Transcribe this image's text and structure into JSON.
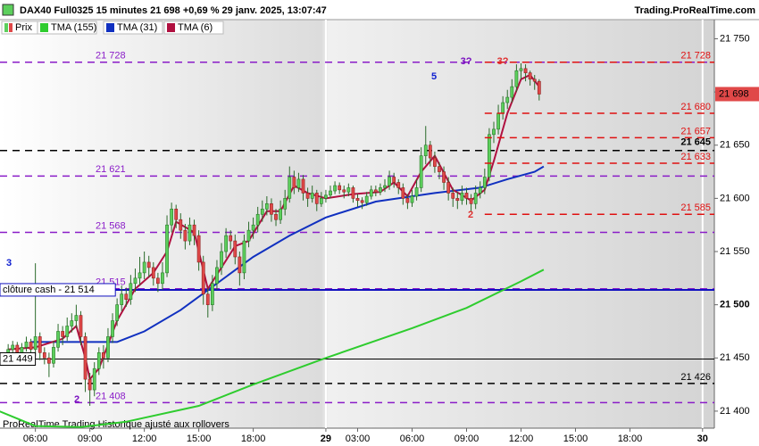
{
  "header": {
    "title": "DAX40 Full0325 15 minutes 21 698 +0,69 % 29 janv. 2025, 13:07:47",
    "site": "Trading.ProRealTime.com",
    "footer": "ProRealTime Trading  Historique ajusté aux rollovers"
  },
  "chart_data": {
    "type": "candlestick",
    "price_series": {
      "name": "Prix",
      "up_color": "#5ccf5c",
      "down_color": "#e04848"
    },
    "last_price": {
      "value": 21698,
      "label": "21 698",
      "color": "#e04848"
    },
    "xlim": [
      -7.8,
      149.6
    ],
    "ylim": [
      21384,
      21768
    ],
    "xticks": [
      {
        "value": 0,
        "label": "06:00"
      },
      {
        "value": 12,
        "label": "09:00"
      },
      {
        "value": 24,
        "label": "12:00"
      },
      {
        "value": 36,
        "label": "15:00"
      },
      {
        "value": 48,
        "label": "18:00"
      },
      {
        "value": 64,
        "label": "29"
      },
      {
        "value": 71,
        "label": "03:00"
      },
      {
        "value": 83,
        "label": "06:00"
      },
      {
        "value": 95,
        "label": "09:00"
      },
      {
        "value": 107,
        "label": "12:00"
      },
      {
        "value": 119,
        "label": "15:00"
      },
      {
        "value": 131,
        "label": "18:00"
      },
      {
        "value": 147,
        "label": "30"
      }
    ],
    "yticks": [
      {
        "value": 21400,
        "label": "21 400"
      },
      {
        "value": 21450,
        "label": "21 450"
      },
      {
        "value": 21500,
        "label": "21 500"
      },
      {
        "value": 21550,
        "label": "21 550"
      },
      {
        "value": 21600,
        "label": "21 600"
      },
      {
        "value": 21650,
        "label": "21 650"
      },
      {
        "value": 21700,
        "label": "21 700"
      },
      {
        "value": 21750,
        "label": "21 750"
      }
    ],
    "x": [
      -6,
      -5,
      -4,
      -3,
      -2,
      -1,
      0,
      1,
      2,
      3,
      4,
      5,
      6,
      7,
      8,
      9,
      10,
      11,
      12,
      13,
      14,
      15,
      16,
      17,
      18,
      19,
      20,
      21,
      22,
      23,
      24,
      25,
      26,
      27,
      28,
      29,
      30,
      31,
      32,
      33,
      34,
      35,
      36,
      37,
      38,
      39,
      40,
      41,
      42,
      43,
      44,
      45,
      46,
      47,
      48,
      49,
      50,
      51,
      52,
      53,
      54,
      55,
      56,
      57,
      58,
      59,
      60,
      61,
      62,
      63,
      64,
      65,
      66,
      67,
      68,
      69,
      70,
      71,
      72,
      73,
      74,
      75,
      76,
      77,
      78,
      79,
      80,
      81,
      82,
      83,
      84,
      85,
      86,
      87,
      88,
      89,
      90,
      91,
      92,
      93,
      94,
      95,
      96,
      97,
      98,
      99,
      100,
      101,
      102,
      103,
      104,
      105,
      106,
      107,
      108,
      109,
      110,
      111
    ],
    "candles": [
      [
        21455,
        21463,
        21450,
        21458
      ],
      [
        21458,
        21466,
        21453,
        21462
      ],
      [
        21462,
        21465,
        21450,
        21455
      ],
      [
        21455,
        21464,
        21452,
        21460
      ],
      [
        21460,
        21470,
        21456,
        21465
      ],
      [
        21465,
        21468,
        21452,
        21458
      ],
      [
        21458,
        21539,
        21452,
        21470
      ],
      [
        21470,
        21474,
        21448,
        21455
      ],
      [
        21455,
        21460,
        21444,
        21450
      ],
      [
        21450,
        21455,
        21432,
        21445
      ],
      [
        21445,
        21466,
        21441,
        21460
      ],
      [
        21460,
        21482,
        21456,
        21475
      ],
      [
        21475,
        21480,
        21462,
        21470
      ],
      [
        21470,
        21488,
        21466,
        21480
      ],
      [
        21480,
        21492,
        21474,
        21485
      ],
      [
        21485,
        21500,
        21478,
        21490
      ],
      [
        21490,
        21494,
        21462,
        21470
      ],
      [
        21470,
        21474,
        21418,
        21430
      ],
      [
        21430,
        21436,
        21405,
        21420
      ],
      [
        21420,
        21446,
        21414,
        21440
      ],
      [
        21440,
        21460,
        21434,
        21455
      ],
      [
        21455,
        21462,
        21440,
        21450
      ],
      [
        21450,
        21478,
        21446,
        21470
      ],
      [
        21470,
        21492,
        21464,
        21485
      ],
      [
        21485,
        21506,
        21480,
        21500
      ],
      [
        21500,
        21518,
        21494,
        21510
      ],
      [
        21510,
        21516,
        21498,
        21505
      ],
      [
        21505,
        21528,
        21500,
        21520
      ],
      [
        21520,
        21534,
        21512,
        21525
      ],
      [
        21525,
        21545,
        21518,
        21530
      ],
      [
        21530,
        21550,
        21524,
        21540
      ],
      [
        21540,
        21546,
        21526,
        21535
      ],
      [
        21535,
        21540,
        21518,
        21525
      ],
      [
        21525,
        21530,
        21512,
        21520
      ],
      [
        21520,
        21540,
        21514,
        21530
      ],
      [
        21530,
        21584,
        21526,
        21575
      ],
      [
        21575,
        21596,
        21568,
        21590
      ],
      [
        21590,
        21594,
        21572,
        21580
      ],
      [
        21580,
        21586,
        21562,
        21570
      ],
      [
        21570,
        21576,
        21552,
        21560
      ],
      [
        21560,
        21582,
        21556,
        21575
      ],
      [
        21575,
        21580,
        21556,
        21565
      ],
      [
        21565,
        21570,
        21532,
        21540
      ],
      [
        21540,
        21546,
        21500,
        21510
      ],
      [
        21510,
        21516,
        21488,
        21500
      ],
      [
        21500,
        21528,
        21494,
        21520
      ],
      [
        21520,
        21542,
        21514,
        21535
      ],
      [
        21535,
        21558,
        21528,
        21550
      ],
      [
        21550,
        21572,
        21544,
        21565
      ],
      [
        21565,
        21570,
        21552,
        21560
      ],
      [
        21560,
        21566,
        21538,
        21545
      ],
      [
        21545,
        21550,
        21518,
        21530
      ],
      [
        21530,
        21566,
        21524,
        21560
      ],
      [
        21560,
        21578,
        21554,
        21570
      ],
      [
        21570,
        21582,
        21562,
        21575
      ],
      [
        21575,
        21592,
        21568,
        21585
      ],
      [
        21585,
        21598,
        21578,
        21590
      ],
      [
        21590,
        21602,
        21584,
        21595
      ],
      [
        21595,
        21600,
        21578,
        21585
      ],
      [
        21585,
        21590,
        21574,
        21580
      ],
      [
        21580,
        21598,
        21576,
        21590
      ],
      [
        21590,
        21608,
        21584,
        21600
      ],
      [
        21600,
        21630,
        21596,
        21620
      ],
      [
        21620,
        21626,
        21604,
        21610
      ],
      [
        21610,
        21624,
        21606,
        21618
      ],
      [
        21618,
        21622,
        21598,
        21605
      ],
      [
        21605,
        21610,
        21592,
        21600
      ],
      [
        21600,
        21612,
        21596,
        21605
      ],
      [
        21605,
        21608,
        21588,
        21595
      ],
      [
        21595,
        21606,
        21592,
        21600
      ],
      [
        21600,
        21608,
        21596,
        21603
      ],
      [
        21603,
        21612,
        21600,
        21607
      ],
      [
        21607,
        21616,
        21604,
        21612
      ],
      [
        21612,
        21615,
        21604,
        21608
      ],
      [
        21608,
        21612,
        21600,
        21606
      ],
      [
        21606,
        21614,
        21602,
        21610
      ],
      [
        21610,
        21612,
        21596,
        21600
      ],
      [
        21600,
        21604,
        21592,
        21598
      ],
      [
        21598,
        21601,
        21590,
        21596
      ],
      [
        21596,
        21606,
        21593,
        21602
      ],
      [
        21602,
        21612,
        21599,
        21608
      ],
      [
        21608,
        21612,
        21602,
        21606
      ],
      [
        21606,
        21614,
        21603,
        21610
      ],
      [
        21610,
        21618,
        21606,
        21612
      ],
      [
        21612,
        21626,
        21608,
        21620
      ],
      [
        21620,
        21624,
        21610,
        21615
      ],
      [
        21615,
        21618,
        21604,
        21610
      ],
      [
        21610,
        21614,
        21594,
        21600
      ],
      [
        21600,
        21604,
        21590,
        21596
      ],
      [
        21596,
        21608,
        21592,
        21602
      ],
      [
        21602,
        21618,
        21598,
        21610
      ],
      [
        21610,
        21648,
        21606,
        21640
      ],
      [
        21640,
        21668,
        21632,
        21650
      ],
      [
        21650,
        21654,
        21630,
        21638
      ],
      [
        21638,
        21644,
        21624,
        21630
      ],
      [
        21630,
        21634,
        21618,
        21625
      ],
      [
        21625,
        21630,
        21608,
        21615
      ],
      [
        21615,
        21620,
        21598,
        21605
      ],
      [
        21605,
        21610,
        21592,
        21600
      ],
      [
        21600,
        21606,
        21590,
        21598
      ],
      [
        21598,
        21612,
        21594,
        21605
      ],
      [
        21605,
        21610,
        21594,
        21600
      ],
      [
        21600,
        21604,
        21588,
        21595
      ],
      [
        21595,
        21612,
        21590,
        21605
      ],
      [
        21605,
        21616,
        21600,
        21610
      ],
      [
        21610,
        21628,
        21604,
        21620
      ],
      [
        21620,
        21666,
        21616,
        21660
      ],
      [
        21660,
        21672,
        21652,
        21665
      ],
      [
        21665,
        21688,
        21660,
        21680
      ],
      [
        21680,
        21696,
        21674,
        21690
      ],
      [
        21690,
        21702,
        21684,
        21695
      ],
      [
        21695,
        21712,
        21690,
        21705
      ],
      [
        21705,
        21726,
        21700,
        21720
      ],
      [
        21720,
        21727,
        21712,
        21722
      ],
      [
        21722,
        21726,
        21710,
        21718
      ],
      [
        21718,
        21720,
        21706,
        21712
      ],
      [
        21712,
        21716,
        21702,
        21710
      ],
      [
        21710,
        21712,
        21692,
        21698
      ]
    ],
    "series": [
      {
        "name": "TMA (155)",
        "color": "#2ecc2e",
        "x": [
          -8,
          0,
          10,
          20,
          36,
          48,
          64,
          83,
          95,
          107,
          112
        ],
        "values": [
          21400,
          21386,
          21385,
          21390,
          21405,
          21425,
          21450,
          21478,
          21497,
          21522,
          21533
        ]
      },
      {
        "name": "TMA (31)",
        "color": "#1030c0",
        "x": [
          -1,
          18,
          24,
          32,
          40,
          48,
          56,
          64,
          75,
          88,
          98,
          104,
          110,
          112
        ],
        "values": [
          21465,
          21465,
          21475,
          21495,
          21520,
          21545,
          21565,
          21582,
          21597,
          21605,
          21610,
          21618,
          21625,
          21630
        ]
      },
      {
        "name": "TMA (6)",
        "color": "#b01040",
        "x": [
          -6,
          0,
          6,
          9,
          11,
          12,
          14,
          18,
          22,
          26,
          29,
          31,
          35,
          38,
          41,
          44,
          47,
          51,
          54,
          57,
          60,
          64,
          70,
          76,
          79,
          82,
          85,
          88,
          92,
          96,
          99,
          101,
          104,
          107,
          109,
          111
        ],
        "values": [
          21458,
          21460,
          21468,
          21480,
          21450,
          21430,
          21440,
          21485,
          21515,
          21530,
          21550,
          21578,
          21568,
          21515,
          21535,
          21555,
          21560,
          21588,
          21588,
          21612,
          21605,
          21600,
          21604,
          21606,
          21615,
          21602,
          21625,
          21640,
          21608,
          21598,
          21608,
          21635,
          21680,
          21712,
          21716,
          21705
        ]
      }
    ],
    "levels": [
      {
        "value": 21728,
        "label": "21 728",
        "color": "#8a1cc8",
        "style": "dashed",
        "side": "left"
      },
      {
        "value": 21728,
        "label": "21 728",
        "color": "#e01010",
        "style": "dashed",
        "side": "right",
        "start": 99
      },
      {
        "value": 21680,
        "label": "21 680",
        "color": "#e01010",
        "style": "dashed",
        "side": "right",
        "start": 99
      },
      {
        "value": 21657,
        "label": "21 657",
        "color": "#e01010",
        "style": "dashed",
        "side": "right",
        "start": 99
      },
      {
        "value": 21645,
        "label": "21 645",
        "color": "#000000",
        "style": "dashed",
        "side": "right"
      },
      {
        "value": 21633,
        "label": "21 633",
        "color": "#e01010",
        "style": "dashed",
        "side": "right",
        "start": 99
      },
      {
        "value": 21621,
        "label": "21 621",
        "color": "#8a1cc8",
        "style": "dashed",
        "side": "left"
      },
      {
        "value": 21585,
        "label": "21 585",
        "color": "#e01010",
        "style": "dashed",
        "side": "right",
        "start": 99
      },
      {
        "value": 21568,
        "label": "21 568",
        "color": "#8a1cc8",
        "style": "dashed",
        "side": "left"
      },
      {
        "value": 21515,
        "label": "21 515",
        "color": "#8a1cc8",
        "style": "dashed",
        "side": "left"
      },
      {
        "value": 21514,
        "label": "clôture cash -  21 514",
        "color": "#1010c0",
        "style": "solid",
        "side": "box"
      },
      {
        "value": 21449,
        "label": "21 449",
        "color": "#000000",
        "style": "solid",
        "side": "box"
      },
      {
        "value": 21426,
        "label": "21 426",
        "color": "#000000",
        "style": "dashed",
        "side": "right"
      },
      {
        "value": 21408,
        "label": "21 408",
        "color": "#8a1cc8",
        "style": "dashed",
        "side": "left"
      }
    ],
    "annotations": [
      {
        "text": "3",
        "color": "#1020d0"
      },
      {
        "text": "2",
        "color": "#7a10c0"
      },
      {
        "text": "5",
        "color": "#1020d0"
      },
      {
        "text": "3?",
        "color": "#7a10c0"
      },
      {
        "text": "3?",
        "color": "#e03030"
      },
      {
        "text": "2",
        "color": "#e03030"
      }
    ]
  }
}
